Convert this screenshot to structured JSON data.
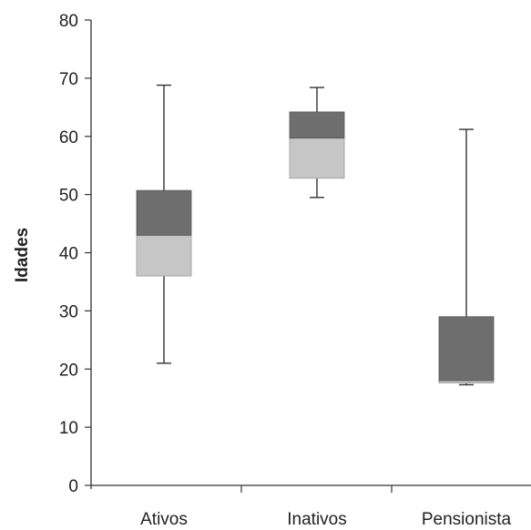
{
  "chart_data": {
    "type": "boxplot",
    "title": "",
    "xlabel": "",
    "ylabel": "Idades",
    "ylim": [
      0,
      80
    ],
    "yticks": [
      0,
      10,
      20,
      30,
      40,
      50,
      60,
      70,
      80
    ],
    "grid": false,
    "categories": [
      "Ativos",
      "Inativos",
      "Pensionista"
    ],
    "boxes": [
      {
        "category": "Ativos",
        "min": 21,
        "q1": 36,
        "median": 43,
        "q3": 50.7,
        "max": 68.8
      },
      {
        "category": "Inativos",
        "min": 49.5,
        "q1": 52.8,
        "median": 59.7,
        "q3": 64.2,
        "max": 68.4
      },
      {
        "category": "Pensionista",
        "min": 17.3,
        "q1": 17.6,
        "median": 18.0,
        "q3": 29.0,
        "max": 61.2
      }
    ],
    "colors": {
      "upper_box": "#6e6e6e",
      "lower_box": "#c6c6c6",
      "axis": "#333333"
    }
  }
}
